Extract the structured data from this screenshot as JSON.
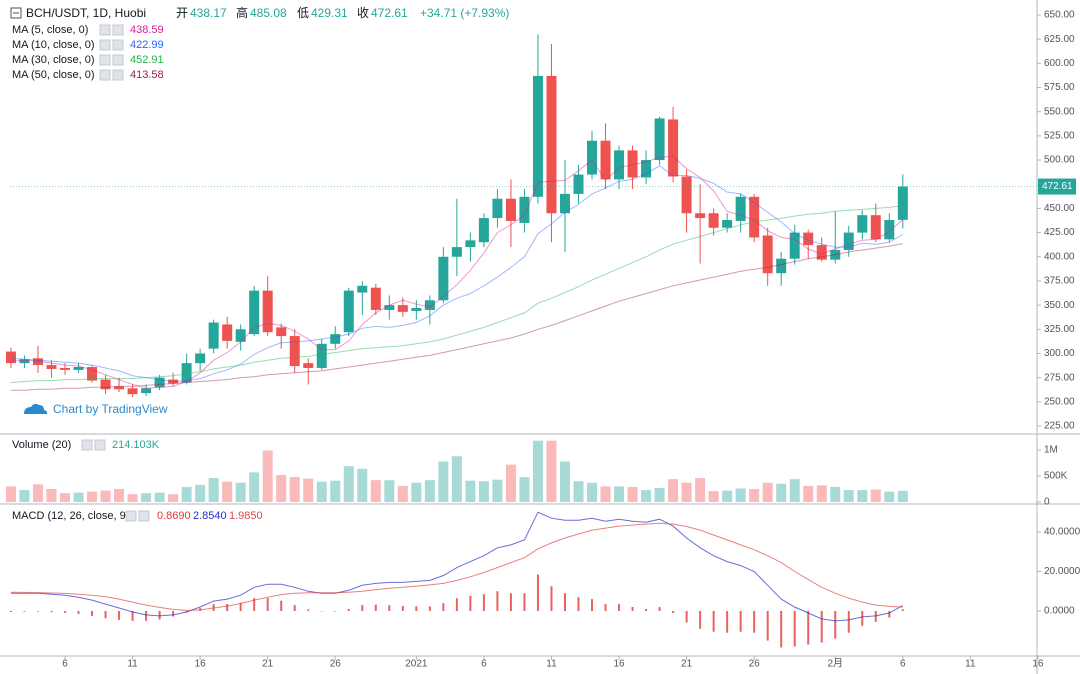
{
  "chart_data": [
    {
      "type": "candlestick",
      "title": "BCH/USDT, 1D, Huobi",
      "ohlc_labels": [
        "开",
        "高",
        "低",
        "收"
      ],
      "change_label": "+34.71 (+7.93%)",
      "watermark": "Chart by TradingView",
      "up_color": "#26a69a",
      "down_color": "#ef5350",
      "xlim": [
        -0.07,
        75.93
      ],
      "xticks": [
        {
          "value": 4,
          "label": "6"
        },
        {
          "value": 9,
          "label": "11"
        },
        {
          "value": 14,
          "label": "16"
        },
        {
          "value": 19,
          "label": "21"
        },
        {
          "value": 24,
          "label": "26"
        },
        {
          "value": 30,
          "label": "2021"
        },
        {
          "value": 35,
          "label": "6"
        },
        {
          "value": 40,
          "label": "11"
        },
        {
          "value": 45,
          "label": "16"
        },
        {
          "value": 50,
          "label": "21"
        },
        {
          "value": 55,
          "label": "26"
        },
        {
          "value": 61,
          "label": "2月"
        },
        {
          "value": 66,
          "label": "6"
        },
        {
          "value": 71,
          "label": "11"
        },
        {
          "value": 76,
          "label": "16"
        }
      ],
      "ylim": [
        218.8,
        665.5
      ],
      "yticks": [
        {
          "value": 650,
          "label": "650.00"
        },
        {
          "value": 625,
          "label": "625.00"
        },
        {
          "value": 600,
          "label": "600.00"
        },
        {
          "value": 575,
          "label": "575.00"
        },
        {
          "value": 550,
          "label": "550.00"
        },
        {
          "value": 525,
          "label": "525.00"
        },
        {
          "value": 500,
          "label": "500.00"
        },
        {
          "value": 475,
          "label": "475.00"
        },
        {
          "value": 450,
          "label": "450.00"
        },
        {
          "value": 425,
          "label": "425.00"
        },
        {
          "value": 400,
          "label": "400.00"
        },
        {
          "value": 375,
          "label": "375.00"
        },
        {
          "value": 350,
          "label": "350.00"
        },
        {
          "value": 325,
          "label": "325.00"
        },
        {
          "value": 300,
          "label": "300.00"
        },
        {
          "value": 275,
          "label": "275.00"
        },
        {
          "value": 250,
          "label": "250.00"
        },
        {
          "value": 225,
          "label": "225.00"
        }
      ],
      "open": [
        302,
        290,
        295,
        288,
        285,
        283,
        286,
        273,
        266,
        264,
        259,
        265,
        273,
        270,
        290,
        305,
        330,
        312,
        320,
        365,
        327,
        318,
        290,
        285,
        310,
        322,
        363,
        368,
        345,
        350,
        344,
        345,
        355,
        400,
        410,
        415,
        440,
        460,
        435,
        462,
        587,
        445,
        465,
        485,
        520,
        480,
        510,
        482,
        500,
        542,
        483,
        445,
        445,
        430,
        437,
        462,
        422,
        383,
        398,
        425,
        412,
        397,
        407,
        425,
        443,
        418,
        438.17
      ],
      "high": [
        306,
        298,
        308,
        293,
        290,
        290,
        288,
        278,
        275,
        268,
        268,
        278,
        280,
        300,
        305,
        335,
        338,
        330,
        370,
        380,
        331,
        325,
        295,
        315,
        328,
        368,
        375,
        372,
        360,
        358,
        355,
        360,
        410,
        460,
        425,
        445,
        470,
        480,
        470,
        630,
        620,
        500,
        495,
        530,
        538,
        515,
        515,
        510,
        545,
        555,
        490,
        475,
        450,
        445,
        465,
        465,
        430,
        405,
        433,
        428,
        420,
        447,
        432,
        448,
        455,
        445,
        485.08
      ],
      "low": [
        285,
        285,
        280,
        275,
        278,
        280,
        270,
        258,
        260,
        255,
        256,
        262,
        266,
        268,
        282,
        300,
        305,
        303,
        318,
        318,
        305,
        280,
        268,
        283,
        305,
        318,
        340,
        340,
        335,
        338,
        335,
        330,
        352,
        380,
        395,
        410,
        430,
        410,
        425,
        455,
        415,
        405,
        455,
        480,
        470,
        470,
        470,
        475,
        495,
        477,
        425,
        393,
        422,
        425,
        425,
        415,
        370,
        370,
        392,
        398,
        395,
        393,
        400,
        418,
        415,
        415,
        429.31
      ],
      "close": [
        290,
        294,
        288,
        284,
        283,
        286,
        272,
        263,
        263,
        258,
        264,
        275,
        269,
        290,
        300,
        332,
        313,
        325,
        365,
        322,
        318,
        287,
        285,
        310,
        320,
        365,
        370,
        345,
        350,
        343,
        347,
        355,
        400,
        410,
        417,
        440,
        460,
        437,
        462,
        587,
        445,
        465,
        485,
        520,
        480,
        510,
        482,
        500,
        543,
        483,
        445,
        440,
        430,
        438,
        462,
        420,
        383,
        398,
        425,
        412,
        397,
        407,
        425,
        443,
        418,
        438,
        472.61
      ],
      "series": [
        {
          "name": "MA (5, close, 0)",
          "color": "#d81b99",
          "values": [
            292,
            293,
            292,
            290,
            288,
            287,
            283,
            278,
            273,
            268,
            264,
            265,
            266,
            271,
            280,
            293,
            301,
            312,
            327,
            331,
            329,
            323,
            315,
            304,
            304,
            313,
            330,
            342,
            350,
            355,
            351,
            348,
            359,
            371,
            386,
            404,
            425,
            433,
            443,
            477,
            478,
            479,
            489,
            500,
            479,
            492,
            495,
            498,
            503,
            504,
            491,
            482,
            468,
            447,
            443,
            438,
            427,
            420,
            418,
            408,
            403,
            408,
            413,
            417,
            418,
            426,
            438.59
          ]
        },
        {
          "name": "MA (10, close, 0)",
          "color": "#2962ff",
          "values": [
            295,
            294,
            293,
            292,
            291,
            290,
            288,
            285,
            282,
            277,
            275,
            273,
            271,
            272,
            274,
            279,
            283,
            289,
            299,
            306,
            311,
            312,
            313,
            315,
            317,
            320,
            326,
            328,
            327,
            329,
            332,
            339,
            350,
            357,
            362,
            370,
            379,
            389,
            400,
            424,
            434,
            446,
            454,
            465,
            471,
            478,
            480,
            486,
            494,
            484,
            484,
            481,
            476,
            467,
            465,
            456,
            446,
            436,
            424,
            417,
            413,
            410,
            410,
            414,
            413,
            415,
            422.99
          ]
        },
        {
          "name": "MA (30, close, 0)",
          "color": "#22b04b",
          "values": [
            270,
            271,
            272,
            272,
            273,
            273,
            274,
            274,
            274,
            274,
            275,
            276,
            277,
            279,
            281,
            284,
            286,
            288,
            291,
            293,
            295,
            296,
            297,
            299,
            301,
            303,
            305,
            306,
            307,
            308,
            310,
            312,
            315,
            319,
            323,
            327,
            332,
            337,
            342,
            352,
            357,
            363,
            369,
            376,
            382,
            388,
            394,
            400,
            407,
            413,
            417,
            421,
            425,
            429,
            433,
            436,
            438,
            440,
            442,
            444,
            445,
            447,
            448,
            449,
            450,
            451,
            452.91
          ]
        },
        {
          "name": "MA (50, close, 0)",
          "color": "#9c1f4a",
          "values": [
            262,
            262,
            263,
            263,
            264,
            264,
            265,
            265,
            266,
            266,
            267,
            268,
            269,
            270,
            271,
            272,
            273,
            275,
            276,
            278,
            279,
            280,
            281,
            282,
            284,
            286,
            288,
            290,
            292,
            294,
            296,
            298,
            301,
            304,
            307,
            310,
            313,
            316,
            320,
            325,
            329,
            334,
            339,
            344,
            349,
            354,
            358,
            362,
            366,
            370,
            373,
            376,
            379,
            382,
            385,
            387,
            389,
            392,
            395,
            398,
            400,
            402,
            405,
            407,
            409,
            411,
            413.58
          ]
        }
      ]
    },
    {
      "type": "bar",
      "title": "Volume (20)",
      "last_label": "214.103K",
      "ylim": [
        0,
        1270000
      ],
      "yticks": [
        0,
        {
          "value": 500000,
          "label": "500K"
        },
        {
          "value": 1000000,
          "label": "1M"
        }
      ],
      "values": [
        300000,
        230000,
        340000,
        250000,
        170000,
        180000,
        200000,
        220000,
        250000,
        150000,
        170000,
        180000,
        150000,
        290000,
        330000,
        460000,
        390000,
        370000,
        570000,
        990000,
        520000,
        480000,
        450000,
        390000,
        410000,
        690000,
        640000,
        420000,
        420000,
        310000,
        370000,
        420000,
        780000,
        880000,
        410000,
        400000,
        430000,
        720000,
        480000,
        1180000,
        1180000,
        780000,
        400000,
        370000,
        300000,
        300000,
        290000,
        230000,
        270000,
        440000,
        370000,
        460000,
        210000,
        220000,
        260000,
        250000,
        370000,
        350000,
        440000,
        310000,
        320000,
        290000,
        230000,
        230000,
        240000,
        200000,
        214103
      ]
    },
    {
      "type": "macd",
      "title": "MACD (12, 26, close, 9)",
      "ylim": [
        -22.3,
        53.7
      ],
      "yticks": [
        {
          "value": 40,
          "label": "40.0000"
        },
        {
          "value": 20,
          "label": "20.0000"
        },
        {
          "value": 0,
          "label": "0.0000"
        }
      ],
      "series": [
        {
          "name": "Histogram",
          "color": "#e53935",
          "last_label": "0.8690",
          "values": [
            -0.5,
            -0.4,
            -0.3,
            -0.6,
            -0.9,
            -1.5,
            -2.5,
            -3.7,
            -4.5,
            -5,
            -5,
            -4.3,
            -2.8,
            -0.8,
            1.5,
            3.5,
            3.5,
            4.2,
            6.5,
            6.5,
            5.2,
            3,
            0.8,
            -0.2,
            -0.2,
            1,
            3,
            3.2,
            3,
            2.5,
            2.4,
            2.3,
            4,
            6.5,
            7.7,
            8.5,
            10,
            9,
            9,
            18.5,
            12.5,
            9,
            7,
            6,
            3.5,
            3.5,
            2,
            1,
            2,
            -1,
            -5.8,
            -9,
            -10.5,
            -11,
            -10.5,
            -11,
            -15,
            -18.5,
            -18,
            -17,
            -16,
            -14,
            -11,
            -7.5,
            -5.5,
            -3.3,
            0.869
          ]
        },
        {
          "name": "MACD",
          "color": "#2c2cc8",
          "last_label": "2.8540",
          "values": [
            9,
            9,
            9,
            8.5,
            8,
            7,
            5.5,
            3.5,
            1.5,
            -0.5,
            -2,
            -2.5,
            -2,
            -0.5,
            2,
            5,
            6,
            8,
            12,
            13.5,
            13.5,
            12,
            10,
            9,
            9,
            10.5,
            13,
            14,
            14.5,
            14.5,
            15,
            15.5,
            18,
            22,
            25,
            28,
            32,
            33.5,
            36,
            50,
            47,
            46,
            46,
            47,
            45.5,
            46.5,
            45.5,
            45,
            46.5,
            43,
            37,
            32,
            28,
            25,
            23,
            20,
            13,
            6,
            2,
            -1,
            -4,
            -5,
            -4.5,
            -3,
            -2.5,
            -1,
            2.854
          ]
        },
        {
          "name": "Signal",
          "color": "#e04a4a",
          "last_label": "1.9850",
          "values": [
            9.5,
            9.4,
            9.3,
            9.1,
            8.9,
            8.5,
            8,
            7.2,
            6,
            4.5,
            3,
            1.8,
            0.8,
            0.3,
            0.5,
            1.5,
            2.5,
            3.8,
            5.5,
            7,
            8.3,
            9,
            9.2,
            9.2,
            9.2,
            9.5,
            10,
            10.8,
            11.5,
            12,
            12.6,
            13.2,
            14,
            15.5,
            17.3,
            19.5,
            22,
            24.5,
            27,
            31.5,
            34.5,
            37,
            39,
            41,
            42,
            43,
            43.5,
            44,
            44.5,
            44,
            42.8,
            41,
            38.5,
            36,
            33.5,
            31,
            28,
            24.5,
            20,
            16,
            12,
            9,
            6.5,
            4.5,
            3,
            2.3,
            1.985
          ]
        }
      ]
    }
  ]
}
